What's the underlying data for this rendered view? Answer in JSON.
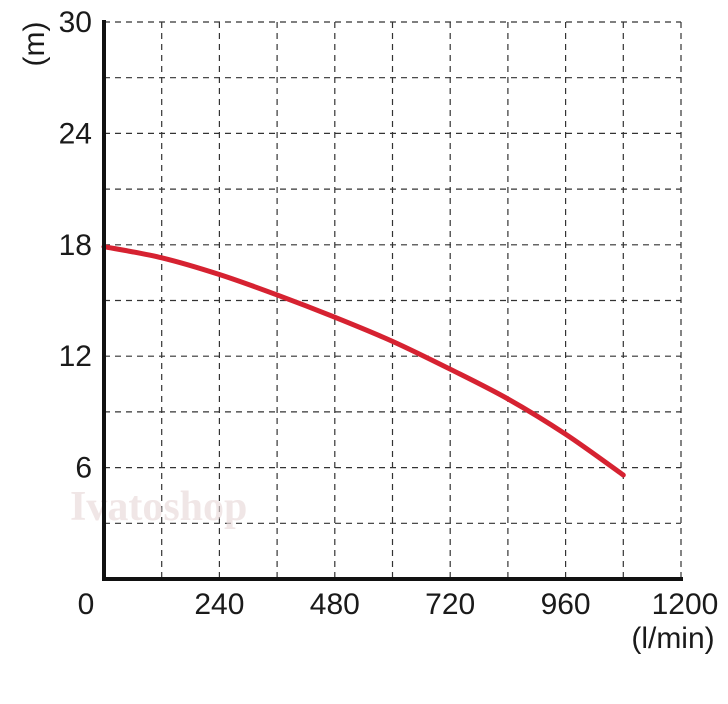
{
  "watermark": "Ivatoshop",
  "chart_data": {
    "type": "line",
    "xlabel": "(l/min)",
    "ylabel": "(m)",
    "xlim": [
      0,
      1200
    ],
    "ylim": [
      0,
      30
    ],
    "x_ticks": [
      0,
      240,
      480,
      720,
      960,
      1200
    ],
    "y_ticks": [
      6,
      12,
      18,
      24,
      30
    ],
    "x_grid_step": 120,
    "y_grid_step": 3,
    "grid": true,
    "colors": {
      "curve": "#d62231",
      "axis": "#111111",
      "grid": "#333333"
    },
    "series": [
      {
        "x": [
          0,
          120,
          240,
          360,
          480,
          600,
          720,
          840,
          960,
          1080
        ],
        "y": [
          17.9,
          17.3,
          16.4,
          15.3,
          14.1,
          12.8,
          11.3,
          9.7,
          7.8,
          5.6
        ]
      }
    ]
  }
}
